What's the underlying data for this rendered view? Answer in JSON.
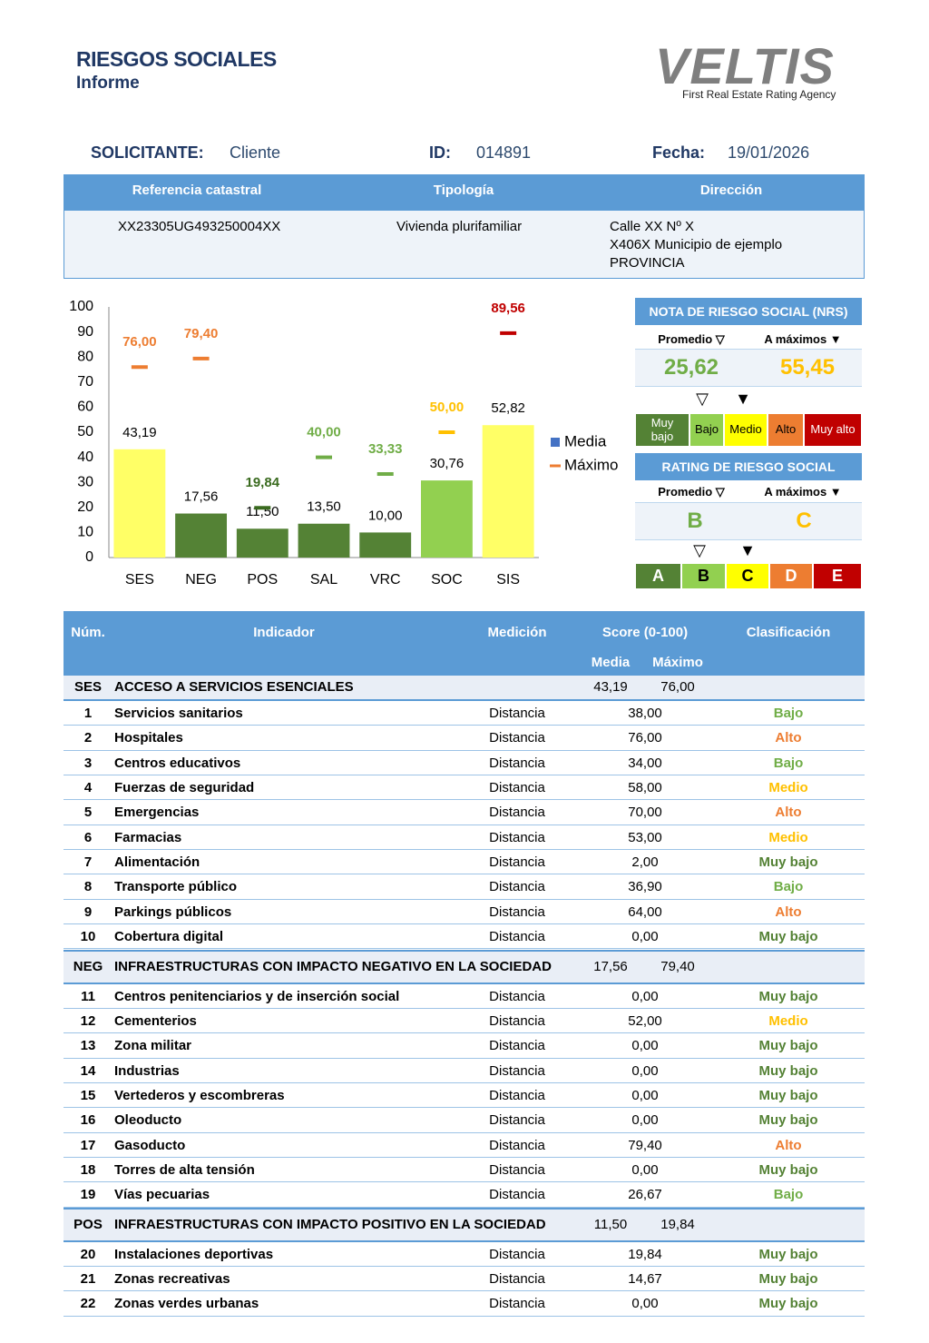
{
  "header": {
    "title": "RIESGOS SOCIALES",
    "subtitle": "Informe",
    "logo": "VELTIS",
    "tagline": "First Real Estate Rating Agency"
  },
  "info": {
    "applicant_label": "SOLICITANTE:",
    "applicant": "Cliente",
    "id_label": "ID:",
    "id": "014891",
    "date_label": "Fecha:",
    "date": "19/01/2026"
  },
  "property": {
    "headers": [
      "Referencia catastral",
      "Tipología",
      "Dirección"
    ],
    "cadastral": "XX23305UG493250004XX",
    "type": "Vivienda plurifamiliar",
    "address": [
      "Calle XX Nº X",
      "X406X Municipio de ejemplo",
      "PROVINCIA"
    ]
  },
  "chart_data": {
    "type": "bar",
    "categories": [
      "SES",
      "NEG",
      "POS",
      "SAL",
      "VRC",
      "SOC",
      "SIS"
    ],
    "series": [
      {
        "name": "Media",
        "color": "#4472c4",
        "values": [
          43.19,
          17.56,
          11.5,
          13.5,
          10,
          30.76,
          52.82
        ],
        "value_labels": [
          "43,19",
          "17,56",
          "11,50",
          "13,50",
          "10,00",
          "30,76",
          "52,82"
        ],
        "colors": [
          "#ffff66",
          "#548235",
          "#548235",
          "#548235",
          "#548235",
          "#92d050",
          "#ffff66"
        ]
      },
      {
        "name": "Máximo",
        "color": "#ed7d31",
        "values": [
          76,
          79.4,
          19.84,
          40,
          33.33,
          50,
          89.56
        ],
        "value_labels": [
          "76,00",
          "79,40",
          "19,84",
          "40,00",
          "33,33",
          "50,00",
          "89,56"
        ],
        "colors": [
          "#ed7d31",
          "#ed7d31",
          "#3a6b1f",
          "#70ad47",
          "#70ad47",
          "#ffc000",
          "#c00000"
        ]
      }
    ],
    "ylim": [
      0,
      100
    ],
    "yticks": [
      0,
      10,
      20,
      30,
      40,
      50,
      60,
      70,
      80,
      90,
      100
    ],
    "grid": false,
    "legend": "right"
  },
  "nrs": {
    "title": "NOTA DE RIESGO SOCIAL (NRS)",
    "columns": [
      "Promedio ▽",
      "A máximos ▼"
    ],
    "values": [
      "25,62",
      "55,45"
    ],
    "value_colors": [
      "#70ad47",
      "#ffc000"
    ],
    "markers": [
      "▽",
      "▼"
    ],
    "scale": [
      {
        "label": "Muy bajo",
        "color": "#548235",
        "text_color": "#ffffff",
        "label_color": "#548235"
      },
      {
        "label": "Bajo",
        "color": "#92d050",
        "text_color": "#000000",
        "label_color": "#70ad47"
      },
      {
        "label": "Medio",
        "color": "#ffff00",
        "text_color": "#000000",
        "label_color": "#ffc000"
      },
      {
        "label": "Alto",
        "color": "#ed7d31",
        "text_color": "#000000",
        "label_color": "#ed7d31"
      },
      {
        "label": "Muy alto",
        "color": "#c00000",
        "text_color": "#ffffff",
        "label_color": "#c00000"
      }
    ]
  },
  "rating": {
    "title": "RATING DE RIESGO SOCIAL",
    "columns": [
      "Promedio ▽",
      "A máximos ▼"
    ],
    "values": [
      "B",
      "C"
    ],
    "value_colors": [
      "#70ad47",
      "#ffc000"
    ],
    "markers": [
      "▽",
      "▼"
    ],
    "scale": [
      {
        "label": "A",
        "color": "#548235",
        "text_color": "#ffffff"
      },
      {
        "label": "B",
        "color": "#92d050",
        "text_color": "#000000"
      },
      {
        "label": "C",
        "color": "#ffff00",
        "text_color": "#000000"
      },
      {
        "label": "D",
        "color": "#ed7d31",
        "text_color": "#ffffff"
      },
      {
        "label": "E",
        "color": "#c00000",
        "text_color": "#ffffff"
      }
    ]
  },
  "table": {
    "headers": [
      "Núm.",
      "Indicador",
      "Medición",
      "Score (0-100)",
      "Clasificación"
    ],
    "subheaders": [
      "Media",
      "Máximo"
    ],
    "sections": [
      {
        "code": "SES",
        "name": "ACCESO A SERVICIOS ESENCIALES",
        "media": "43,19",
        "maximo": "76,00",
        "rows": [
          {
            "num": 1,
            "indicator": "Servicios sanitarios",
            "measure": "Distancia",
            "score": "38,00",
            "class": "Bajo"
          },
          {
            "num": 2,
            "indicator": "Hospitales",
            "measure": "Distancia",
            "score": "76,00",
            "class": "Alto"
          },
          {
            "num": 3,
            "indicator": "Centros educativos",
            "measure": "Distancia",
            "score": "34,00",
            "class": "Bajo"
          },
          {
            "num": 4,
            "indicator": "Fuerzas de seguridad",
            "measure": "Distancia",
            "score": "58,00",
            "class": "Medio"
          },
          {
            "num": 5,
            "indicator": "Emergencias",
            "measure": "Distancia",
            "score": "70,00",
            "class": "Alto"
          },
          {
            "num": 6,
            "indicator": "Farmacias",
            "measure": "Distancia",
            "score": "53,00",
            "class": "Medio"
          },
          {
            "num": 7,
            "indicator": "Alimentación",
            "measure": "Distancia",
            "score": "2,00",
            "class": "Muy bajo"
          },
          {
            "num": 8,
            "indicator": "Transporte público",
            "measure": "Distancia",
            "score": "36,90",
            "class": "Bajo"
          },
          {
            "num": 9,
            "indicator": "Parkings públicos",
            "measure": "Distancia",
            "score": "64,00",
            "class": "Alto"
          },
          {
            "num": 10,
            "indicator": "Cobertura digital",
            "measure": "Distancia",
            "score": "0,00",
            "class": "Muy bajo"
          }
        ]
      },
      {
        "code": "NEG",
        "name": "INFRAESTRUCTURAS CON IMPACTO NEGATIVO EN LA SOCIEDAD",
        "media": "17,56",
        "maximo": "79,40",
        "rows": [
          {
            "num": 11,
            "indicator": "Centros penitenciarios y de inserción social",
            "measure": "Distancia",
            "score": "0,00",
            "class": "Muy bajo"
          },
          {
            "num": 12,
            "indicator": "Cementerios",
            "measure": "Distancia",
            "score": "52,00",
            "class": "Medio"
          },
          {
            "num": 13,
            "indicator": "Zona militar",
            "measure": "Distancia",
            "score": "0,00",
            "class": "Muy bajo"
          },
          {
            "num": 14,
            "indicator": "Industrias",
            "measure": "Distancia",
            "score": "0,00",
            "class": "Muy bajo"
          },
          {
            "num": 15,
            "indicator": "Vertederos y escombreras",
            "measure": "Distancia",
            "score": "0,00",
            "class": "Muy bajo"
          },
          {
            "num": 16,
            "indicator": "Oleoducto",
            "measure": "Distancia",
            "score": "0,00",
            "class": "Muy bajo"
          },
          {
            "num": 17,
            "indicator": "Gasoducto",
            "measure": "Distancia",
            "score": "79,40",
            "class": "Alto"
          },
          {
            "num": 18,
            "indicator": "Torres de alta tensión",
            "measure": "Distancia",
            "score": "0,00",
            "class": "Muy bajo"
          },
          {
            "num": 19,
            "indicator": "Vías pecuarias",
            "measure": "Distancia",
            "score": "26,67",
            "class": "Bajo"
          }
        ]
      },
      {
        "code": "POS",
        "name": "INFRAESTRUCTURAS CON IMPACTO POSITIVO EN LA SOCIEDAD",
        "media": "11,50",
        "maximo": "19,84",
        "rows": [
          {
            "num": 20,
            "indicator": "Instalaciones deportivas",
            "measure": "Distancia",
            "score": "19,84",
            "class": "Muy bajo"
          },
          {
            "num": 21,
            "indicator": "Zonas recreativas",
            "measure": "Distancia",
            "score": "14,67",
            "class": "Muy bajo"
          },
          {
            "num": 22,
            "indicator": "Zonas verdes urbanas",
            "measure": "Distancia",
            "score": "0,00",
            "class": "Muy bajo"
          }
        ]
      }
    ]
  }
}
